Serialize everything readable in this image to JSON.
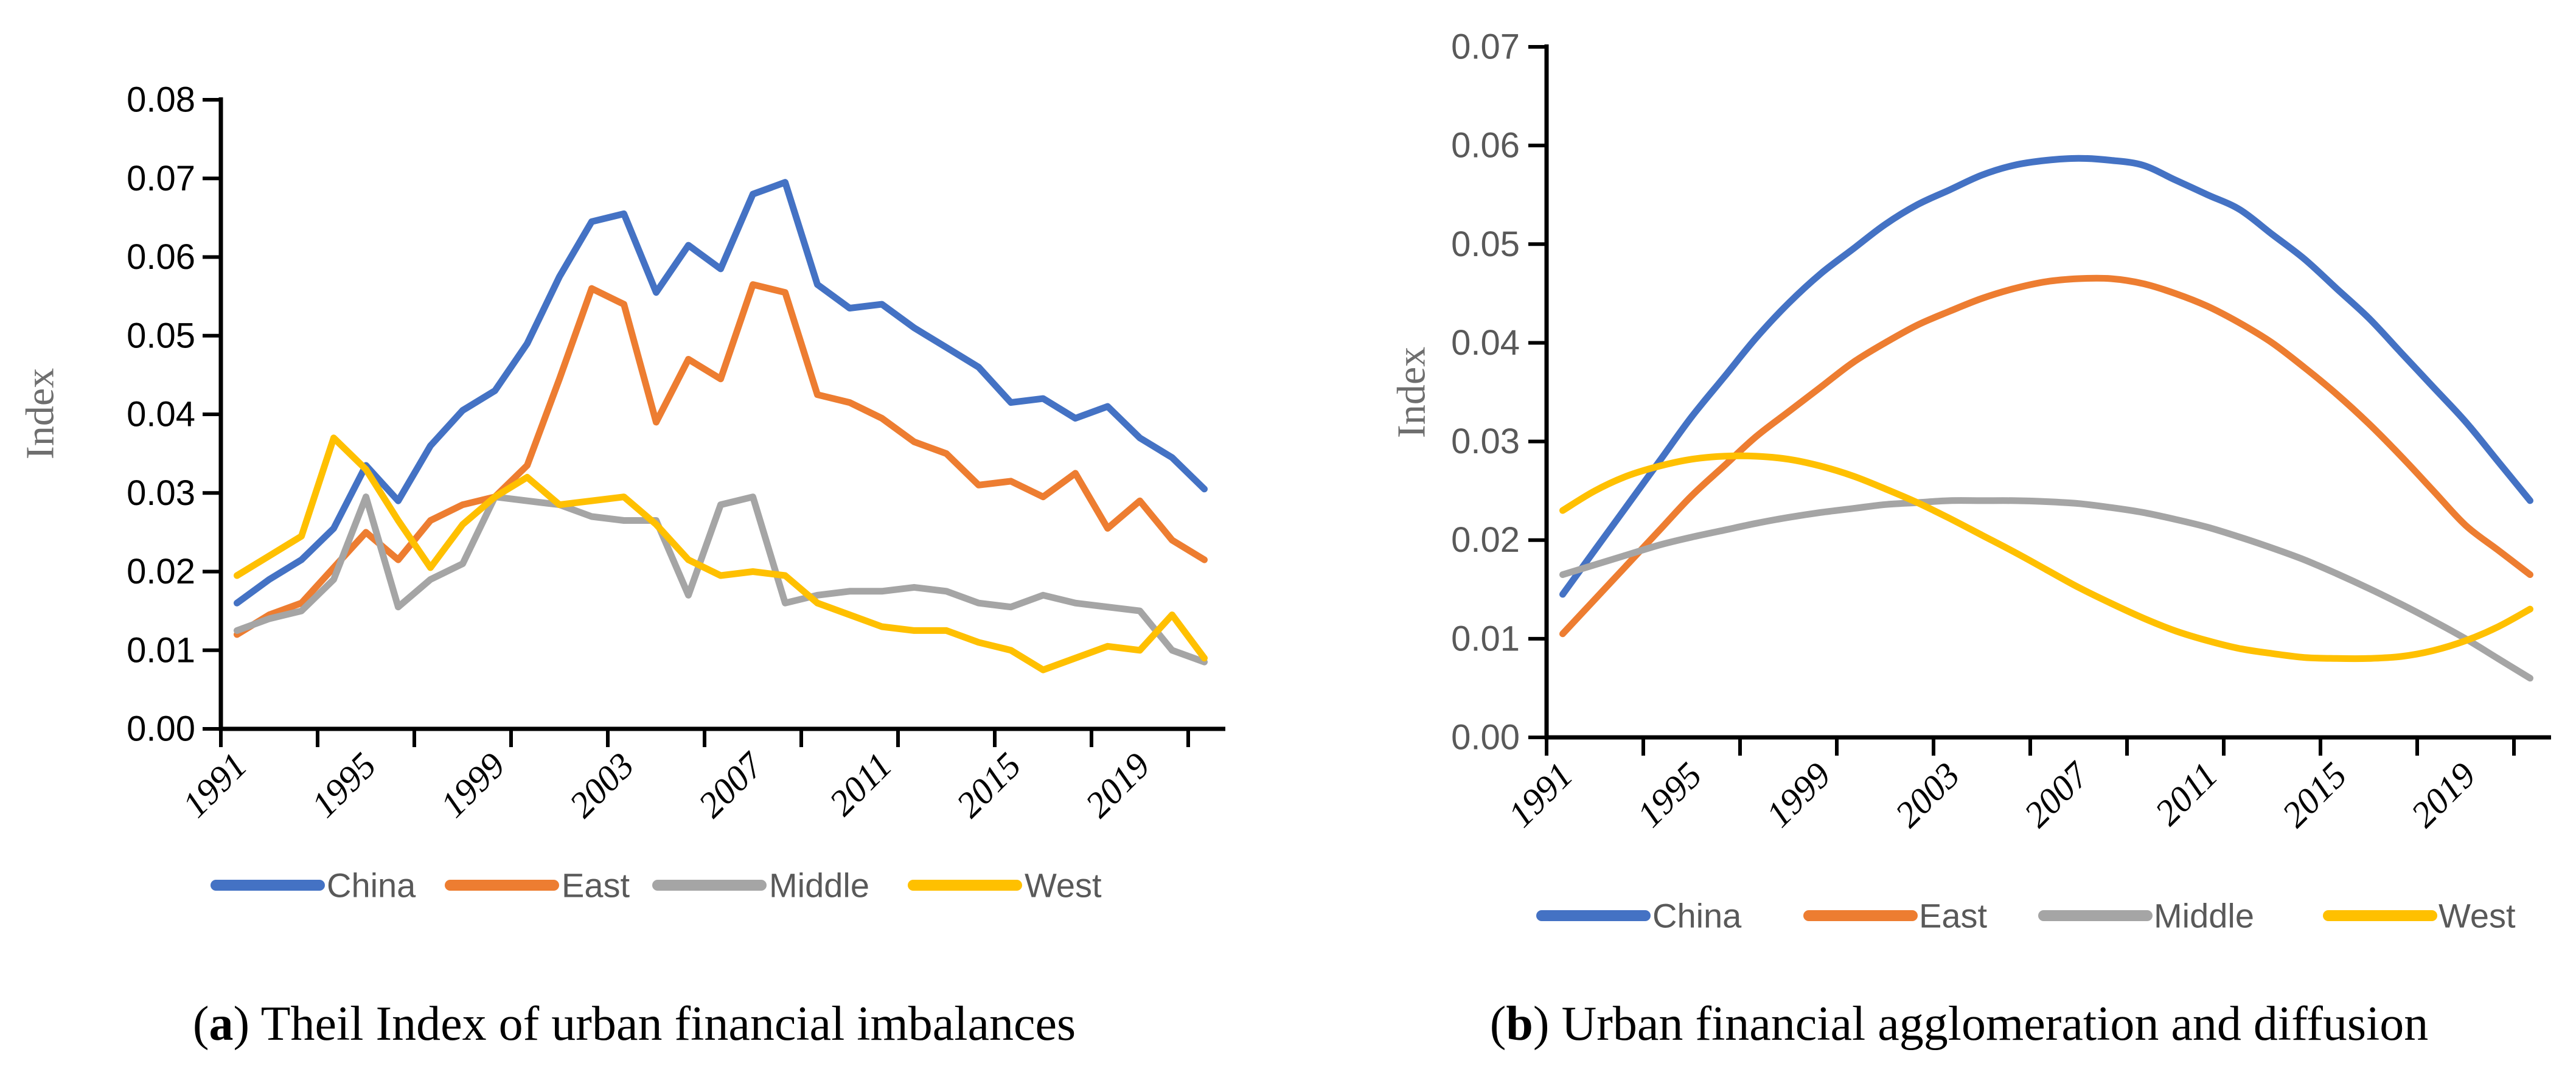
{
  "figure": {
    "background": "#ffffff",
    "captions": {
      "a": {
        "open": "(",
        "letter": "a",
        "rest": ") Theil Index of urban financial imbalances"
      },
      "b": {
        "open": "(",
        "letter": "b",
        "rest": ") Urban financial agglomeration and diffusion"
      }
    }
  },
  "colors": {
    "china": "#4472C4",
    "east": "#ED7D31",
    "middle": "#A5A5A5",
    "west": "#FFC000",
    "axis": "#000000",
    "tick_labels_panel_a": "#000000",
    "tick_labels_panel_b": "#595959",
    "year_labels": "#000000",
    "legend_text": "#595959",
    "axis_title": "#6E6E6E"
  },
  "chart_data": [
    {
      "id": "a",
      "type": "line",
      "title": "(a) Theil Index of urban financial imbalances",
      "xlabel": "",
      "ylabel": "Index",
      "ylim": [
        0,
        0.08
      ],
      "ytick_step": 0.01,
      "y_tick_labels": [
        "0.00",
        "0.01",
        "0.02",
        "0.03",
        "0.04",
        "0.05",
        "0.06",
        "0.07",
        "0.08"
      ],
      "x": [
        1991,
        1992,
        1993,
        1994,
        1995,
        1996,
        1997,
        1998,
        1999,
        2000,
        2001,
        2002,
        2003,
        2004,
        2005,
        2006,
        2007,
        2008,
        2009,
        2010,
        2011,
        2012,
        2013,
        2014,
        2015,
        2016,
        2017,
        2018,
        2019,
        2020,
        2021
      ],
      "x_tick_labels_shown": [
        "1991",
        "1995",
        "1999",
        "2003",
        "2007",
        "2011",
        "2015",
        "2019"
      ],
      "grid": false,
      "smooth": false,
      "legend_position": "bottom",
      "series": [
        {
          "name": "China",
          "color": "#4472C4",
          "values": [
            0.016,
            0.019,
            0.0215,
            0.0255,
            0.0335,
            0.029,
            0.036,
            0.0405,
            0.043,
            0.049,
            0.0575,
            0.0645,
            0.0655,
            0.0555,
            0.0615,
            0.0585,
            0.068,
            0.0695,
            0.0565,
            0.0535,
            0.054,
            0.051,
            0.0485,
            0.046,
            0.0415,
            0.042,
            0.0395,
            0.041,
            0.037,
            0.0345,
            0.0305
          ]
        },
        {
          "name": "East",
          "color": "#ED7D31",
          "values": [
            0.012,
            0.0145,
            0.016,
            0.0205,
            0.025,
            0.0215,
            0.0265,
            0.0285,
            0.0295,
            0.0335,
            0.0445,
            0.056,
            0.054,
            0.039,
            0.047,
            0.0445,
            0.0565,
            0.0555,
            0.0425,
            0.0415,
            0.0395,
            0.0365,
            0.035,
            0.031,
            0.0315,
            0.0295,
            0.0325,
            0.0255,
            0.029,
            0.024,
            0.0215
          ]
        },
        {
          "name": "Middle",
          "color": "#A5A5A5",
          "values": [
            0.0125,
            0.014,
            0.015,
            0.019,
            0.0295,
            0.0155,
            0.019,
            0.021,
            0.0295,
            0.029,
            0.0285,
            0.027,
            0.0265,
            0.0265,
            0.017,
            0.0285,
            0.0295,
            0.016,
            0.017,
            0.0175,
            0.0175,
            0.018,
            0.0175,
            0.016,
            0.0155,
            0.017,
            0.016,
            0.0155,
            0.015,
            0.01,
            0.0085
          ]
        },
        {
          "name": "West",
          "color": "#FFC000",
          "values": [
            0.0195,
            0.022,
            0.0245,
            0.037,
            0.033,
            0.0265,
            0.0205,
            0.026,
            0.0295,
            0.032,
            0.0285,
            0.029,
            0.0295,
            0.026,
            0.0215,
            0.0195,
            0.02,
            0.0195,
            0.016,
            0.0145,
            0.013,
            0.0125,
            0.0125,
            0.011,
            0.01,
            0.0075,
            0.009,
            0.0105,
            0.01,
            0.0145,
            0.009
          ]
        }
      ]
    },
    {
      "id": "b",
      "type": "line",
      "title": "(b) Urban financial agglomeration and diffusion",
      "xlabel": "",
      "ylabel": "Index",
      "ylim": [
        0,
        0.07
      ],
      "ytick_step": 0.01,
      "y_tick_labels": [
        "0.00",
        "0.01",
        "0.02",
        "0.03",
        "0.04",
        "0.05",
        "0.06",
        "0.07"
      ],
      "x": [
        1991,
        1992,
        1993,
        1994,
        1995,
        1996,
        1997,
        1998,
        1999,
        2000,
        2001,
        2002,
        2003,
        2004,
        2005,
        2006,
        2007,
        2008,
        2009,
        2010,
        2011,
        2012,
        2013,
        2014,
        2015,
        2016,
        2017,
        2018,
        2019,
        2020,
        2021
      ],
      "x_tick_labels_shown": [
        "1991",
        "1995",
        "1999",
        "2003",
        "2007",
        "2011",
        "2015",
        "2019"
      ],
      "grid": false,
      "smooth": true,
      "legend_position": "bottom",
      "series": [
        {
          "name": "China",
          "color": "#4472C4",
          "values": [
            0.0145,
            0.019,
            0.0235,
            0.028,
            0.0325,
            0.0365,
            0.0405,
            0.044,
            0.047,
            0.0495,
            0.052,
            0.054,
            0.0555,
            0.057,
            0.058,
            0.0585,
            0.0587,
            0.0585,
            0.058,
            0.0565,
            0.055,
            0.0535,
            0.051,
            0.0485,
            0.0455,
            0.0425,
            0.039,
            0.0355,
            0.032,
            0.028,
            0.024
          ]
        },
        {
          "name": "East",
          "color": "#ED7D31",
          "values": [
            0.0105,
            0.014,
            0.0175,
            0.021,
            0.0245,
            0.0275,
            0.0305,
            0.033,
            0.0355,
            0.038,
            0.04,
            0.0418,
            0.0432,
            0.0445,
            0.0455,
            0.0462,
            0.0465,
            0.0465,
            0.046,
            0.045,
            0.0437,
            0.042,
            0.04,
            0.0375,
            0.0348,
            0.0318,
            0.0285,
            0.025,
            0.0215,
            0.019,
            0.0165
          ]
        },
        {
          "name": "Middle",
          "color": "#A5A5A5",
          "values": [
            0.0165,
            0.0175,
            0.0185,
            0.0195,
            0.0203,
            0.021,
            0.0217,
            0.0223,
            0.0228,
            0.0232,
            0.0236,
            0.0238,
            0.024,
            0.024,
            0.024,
            0.0239,
            0.0237,
            0.0233,
            0.0228,
            0.0221,
            0.0213,
            0.0203,
            0.0192,
            0.018,
            0.0166,
            0.0151,
            0.0135,
            0.0118,
            0.01,
            0.008,
            0.006
          ]
        },
        {
          "name": "West",
          "color": "#FFC000",
          "values": [
            0.023,
            0.025,
            0.0265,
            0.0275,
            0.0282,
            0.0285,
            0.0285,
            0.0282,
            0.0275,
            0.0265,
            0.0252,
            0.0238,
            0.0222,
            0.0205,
            0.0188,
            0.017,
            0.0152,
            0.0136,
            0.0121,
            0.0108,
            0.0098,
            0.009,
            0.0085,
            0.0081,
            0.008,
            0.008,
            0.0082,
            0.0088,
            0.0098,
            0.0112,
            0.013
          ]
        }
      ]
    }
  ]
}
